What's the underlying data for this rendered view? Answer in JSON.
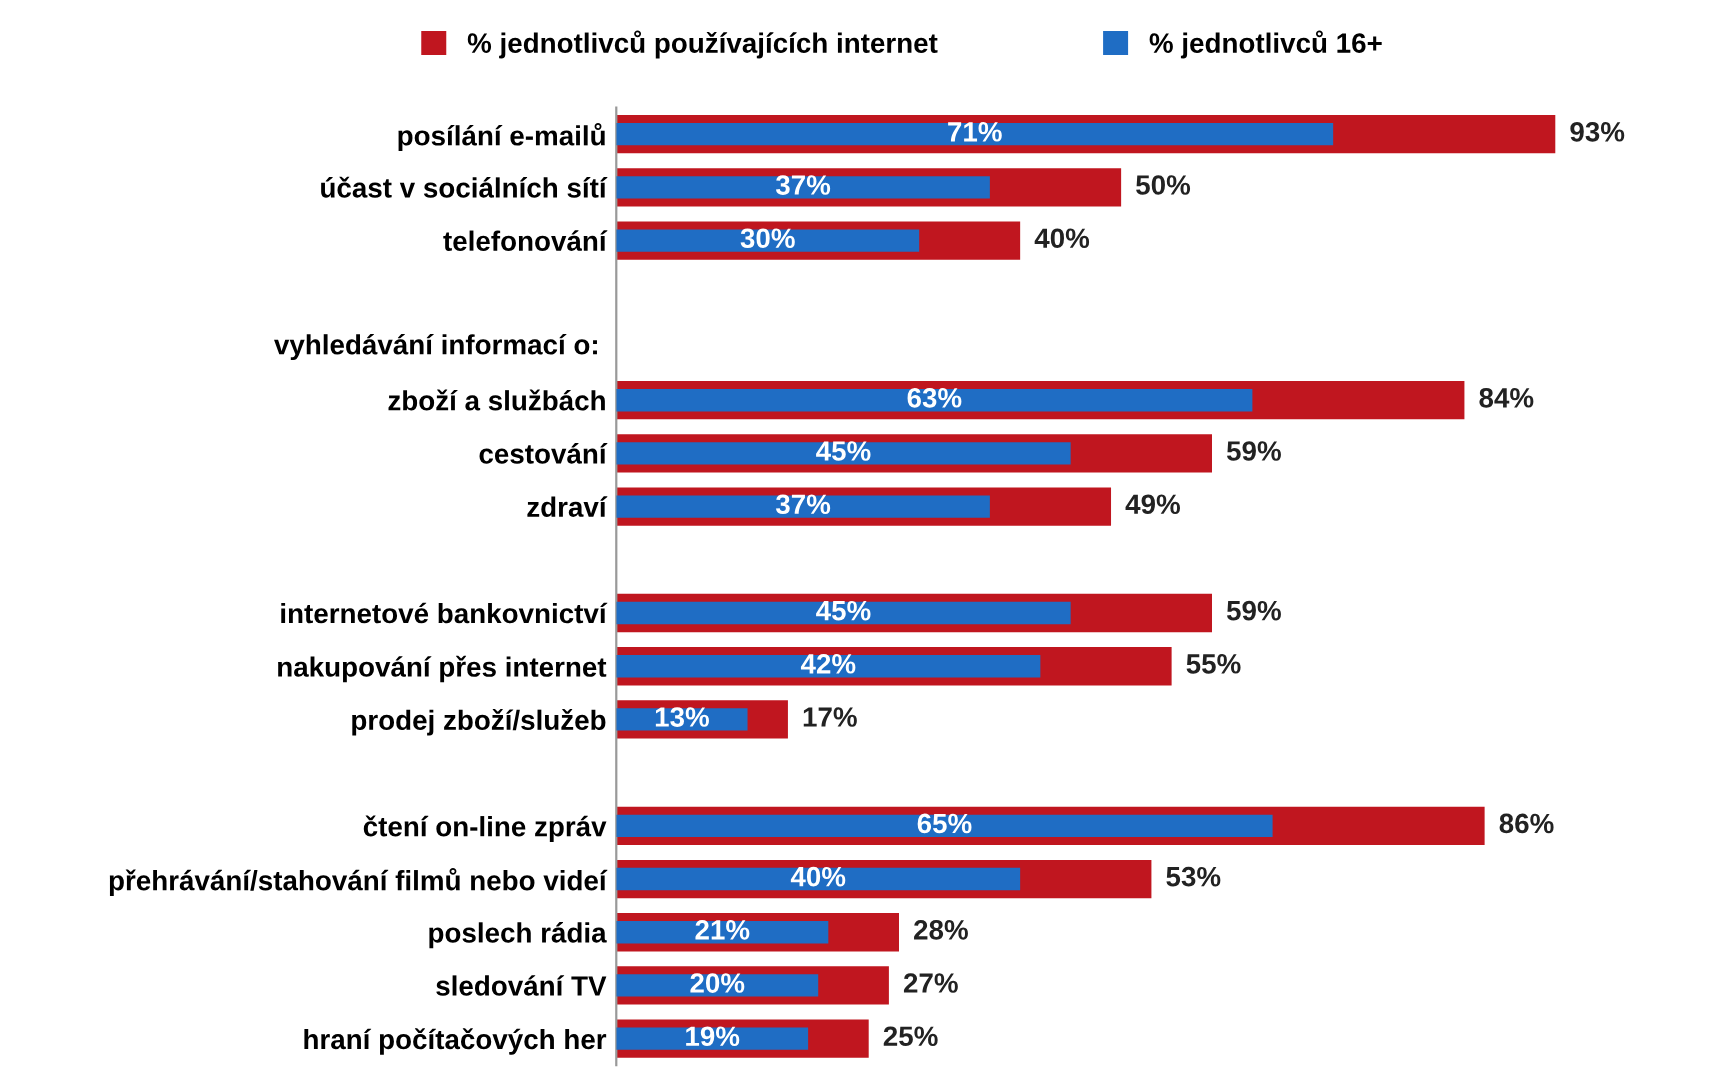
{
  "chart_data": {
    "type": "bar",
    "orientation": "horizontal",
    "legend": "top",
    "tick_labels": "y",
    "grid": false,
    "annotations": [
      "vyhledávání informací o:"
    ],
    "categories": [
      "posílání e-mailů",
      "účast v sociálních sítí",
      "telefonování",
      null,
      null,
      "zboží a službách",
      "cestování",
      "zdraví",
      null,
      "internetové bankovnictví",
      "nakupování přes internet",
      "prodej zboží/služeb",
      null,
      "čtení on-line zpráv",
      "přehrávání/stahování filmů nebo videí",
      "poslech rádia",
      "sledování TV",
      "hraní počítačových her"
    ],
    "series": [
      {
        "name": "% jednotlivců používajících internet",
        "color": "#c0161f",
        "values": [
          93,
          50,
          40,
          null,
          null,
          84,
          59,
          49,
          null,
          59,
          55,
          17,
          null,
          86,
          53,
          28,
          27,
          25
        ],
        "value_labels": [
          "93%",
          "50%",
          "40%",
          null,
          null,
          "84%",
          "59%",
          "49%",
          null,
          "59%",
          "55%",
          "17%",
          null,
          "86%",
          "53%",
          "28%",
          "27%",
          "25%"
        ]
      },
      {
        "name": "% jednotlivců 16+",
        "color": "#1f6dc4",
        "values": [
          71,
          37,
          30,
          null,
          null,
          63,
          45,
          37,
          null,
          45,
          42,
          13,
          null,
          65,
          40,
          21,
          20,
          19
        ],
        "value_labels": [
          "71%",
          "37%",
          "30%",
          null,
          null,
          "63%",
          "45%",
          "37%",
          null,
          "45%",
          "42%",
          "13%",
          null,
          "65%",
          "40%",
          "21%",
          "20%",
          "19%"
        ]
      }
    ]
  }
}
